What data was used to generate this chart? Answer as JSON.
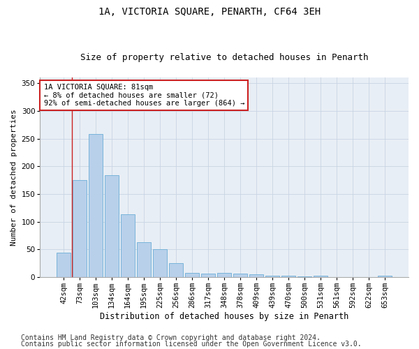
{
  "title1": "1A, VICTORIA SQUARE, PENARTH, CF64 3EH",
  "title2": "Size of property relative to detached houses in Penarth",
  "xlabel": "Distribution of detached houses by size in Penarth",
  "ylabel": "Number of detached properties",
  "categories": [
    "42sqm",
    "73sqm",
    "103sqm",
    "134sqm",
    "164sqm",
    "195sqm",
    "225sqm",
    "256sqm",
    "286sqm",
    "317sqm",
    "348sqm",
    "378sqm",
    "409sqm",
    "439sqm",
    "470sqm",
    "500sqm",
    "531sqm",
    "561sqm",
    "592sqm",
    "622sqm",
    "653sqm"
  ],
  "values": [
    44,
    175,
    259,
    184,
    113,
    63,
    50,
    25,
    8,
    6,
    8,
    6,
    5,
    3,
    2,
    1,
    2,
    0,
    0,
    0,
    2
  ],
  "bar_color": "#b8d0ea",
  "bar_edge_color": "#6baed6",
  "vline_x": 0.5,
  "vline_color": "#cc2222",
  "annotation_text": "1A VICTORIA SQUARE: 81sqm\n← 8% of detached houses are smaller (72)\n92% of semi-detached houses are larger (864) →",
  "annotation_box_color": "#ffffff",
  "annotation_box_edge": "#cc2222",
  "ylim": [
    0,
    360
  ],
  "yticks": [
    0,
    50,
    100,
    150,
    200,
    250,
    300,
    350
  ],
  "footer1": "Contains HM Land Registry data © Crown copyright and database right 2024.",
  "footer2": "Contains public sector information licensed under the Open Government Licence v3.0.",
  "bg_color": "#ffffff",
  "plot_bg_color": "#e8eef5",
  "grid_color": "#c8d4e4",
  "title1_fontsize": 10,
  "title2_fontsize": 9,
  "xlabel_fontsize": 8.5,
  "ylabel_fontsize": 8,
  "tick_fontsize": 7.5,
  "annot_fontsize": 7.5,
  "footer_fontsize": 7
}
